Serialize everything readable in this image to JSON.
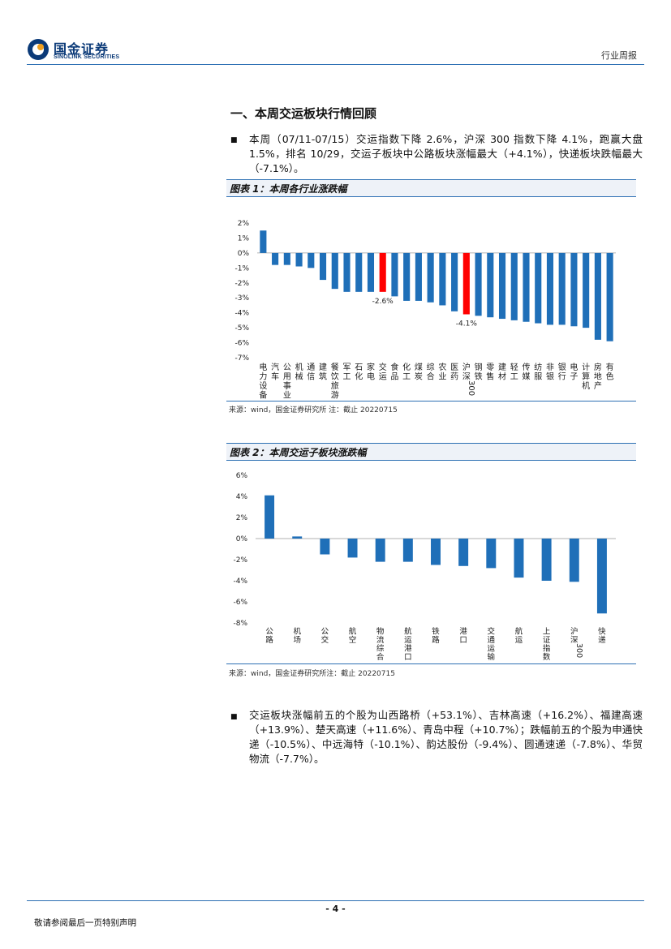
{
  "header": {
    "logo_cn": "国金证券",
    "logo_en": "SINOLINK SECURITIES",
    "report_type": "行业周报",
    "brand_color": "#0b3a78",
    "accent_color": "#2c6fb3"
  },
  "section": {
    "title": "一、本周交运板块行情回顾",
    "para1": "本周（07/11-07/15）交运指数下降 2.6%，沪深 300 指数下降 4.1%，跑赢大盘 1.5%，排名 10/29，交运子板块中公路板块涨幅最大（+4.1%），快递板块跌幅最大（-7.1%）。",
    "para2": "交运板块涨幅前五的个股为山西路桥（+53.1%）、吉林高速（+16.2%）、福建高速（+13.9%）、楚天高速（+11.6%）、青岛中程（+10.7%）；跌幅前五的个股为申通快递（-10.5%）、中远海特（-10.1%）、韵达股份（-9.4%）、圆通速递（-7.8%）、华贸物流（-7.7%）。"
  },
  "figure1": {
    "title": "图表 1：本周各行业涨跌幅",
    "source": "来源：wind，国金证券研究所 注：截止 20220715"
  },
  "figure2": {
    "title": "图表 2：本周交运子板块涨跌幅",
    "source": "来源：wind，国金证券研究所注：截止 20220715"
  },
  "footer": {
    "page": "- 4 -",
    "disclaimer": "敬请参阅最后一页特别声明"
  },
  "chart_data": [
    {
      "type": "bar",
      "title": "本周各行业涨跌幅",
      "categories": [
        "电力设备",
        "汽车",
        "公用事业",
        "机械",
        "通信",
        "建筑",
        "餐饮旅游",
        "军工",
        "石化",
        "家电",
        "交运",
        "食品",
        "化工",
        "煤炭",
        "综合",
        "农业",
        "医药",
        "沪深300",
        "钢铁",
        "零售",
        "建材",
        "轻工",
        "传媒",
        "纺服",
        "非银",
        "银行",
        "电子",
        "计算机",
        "房地产",
        "有色"
      ],
      "values": [
        1.5,
        -0.8,
        -0.8,
        -0.9,
        -1.0,
        -1.8,
        -2.4,
        -2.6,
        -2.6,
        -2.6,
        -2.6,
        -2.9,
        -3.2,
        -3.2,
        -3.3,
        -3.5,
        -3.9,
        -4.1,
        -4.2,
        -4.3,
        -4.4,
        -4.5,
        -4.6,
        -4.7,
        -4.8,
        -4.8,
        -4.9,
        -5.0,
        -5.8,
        -5.9
      ],
      "highlight": [
        "交运",
        "沪深300"
      ],
      "data_labels": [
        {
          "category": "交运",
          "label": "-2.6%"
        },
        {
          "category": "沪深300",
          "label": "-4.1%"
        }
      ],
      "ylim": [
        -7,
        2
      ],
      "yticks": [
        "2%",
        "1%",
        "0%",
        "-1%",
        "-2%",
        "-3%",
        "-4%",
        "-5%",
        "-6%",
        "-7%"
      ],
      "bar_color": "#1f6fb8",
      "highlight_color": "#ff0000"
    },
    {
      "type": "bar",
      "title": "本周交运子板块涨跌幅",
      "categories": [
        "公路",
        "机场",
        "公交",
        "航空",
        "物流综合",
        "航运港口",
        "铁路",
        "港口",
        "交通运输",
        "航运",
        "上证指数",
        "沪深300",
        "快递"
      ],
      "values": [
        4.1,
        0.2,
        -1.5,
        -1.8,
        -2.2,
        -2.2,
        -2.5,
        -2.6,
        -2.8,
        -3.7,
        -4.0,
        -4.1,
        -7.1
      ],
      "ylim": [
        -8,
        6
      ],
      "yticks": [
        "6%",
        "4%",
        "2%",
        "0%",
        "-2%",
        "-4%",
        "-6%",
        "-8%"
      ],
      "bar_color": "#1f6fb8"
    }
  ]
}
